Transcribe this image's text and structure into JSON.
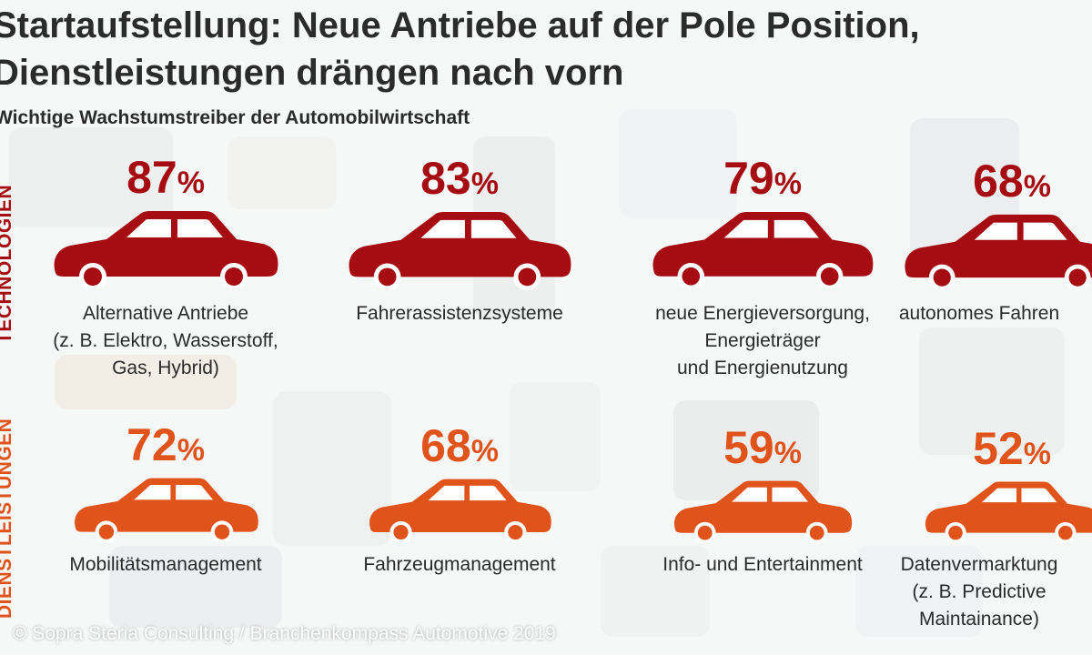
{
  "header": {
    "title": "Startaufstellung: Neue Antriebe auf der Pole Position,\nDienstleistungen drängen nach vorn",
    "subtitle": "Wichtige Wachstumstreiber der Automobilwirtschaft"
  },
  "colors": {
    "technologien": "#a50d12",
    "dienstleistungen": "#e0531b"
  },
  "chart_data": {
    "type": "pictograph",
    "title": "Startaufstellung: Neue Antriebe auf der Pole Position, Dienstleistungen drängen nach vorn",
    "subtitle": "Wichtige Wachstumstreiber der Automobilwirtschaft",
    "unit": "%",
    "groups": [
      {
        "name": "TECHNOLOGIEN",
        "items": [
          {
            "label": "Alternative Antriebe\n(z. B. Elektro, Wasserstoff,\nGas, Hybrid)",
            "value": 87
          },
          {
            "label": "Fahrerassistenzsysteme",
            "value": 83
          },
          {
            "label": "neue Energieversorgung,\nEnergieträger\nund Energienutzung",
            "value": 79
          },
          {
            "label": "autonomes Fahren",
            "value": 68
          }
        ]
      },
      {
        "name": "DIENSTLEISTUNGEN",
        "items": [
          {
            "label": "Mobilitätsmanagement",
            "value": 72
          },
          {
            "label": "Fahrzeugmanagement",
            "value": 68
          },
          {
            "label": "Info- und Entertainment",
            "value": 59
          },
          {
            "label": "Datenvermarktung\n(z. B. Predictive\nMaintainance)",
            "value": 52
          }
        ]
      }
    ]
  },
  "footer": {
    "copyright": "© Sopra Steria Consulting / Branchenkompass Automotive 2019"
  }
}
